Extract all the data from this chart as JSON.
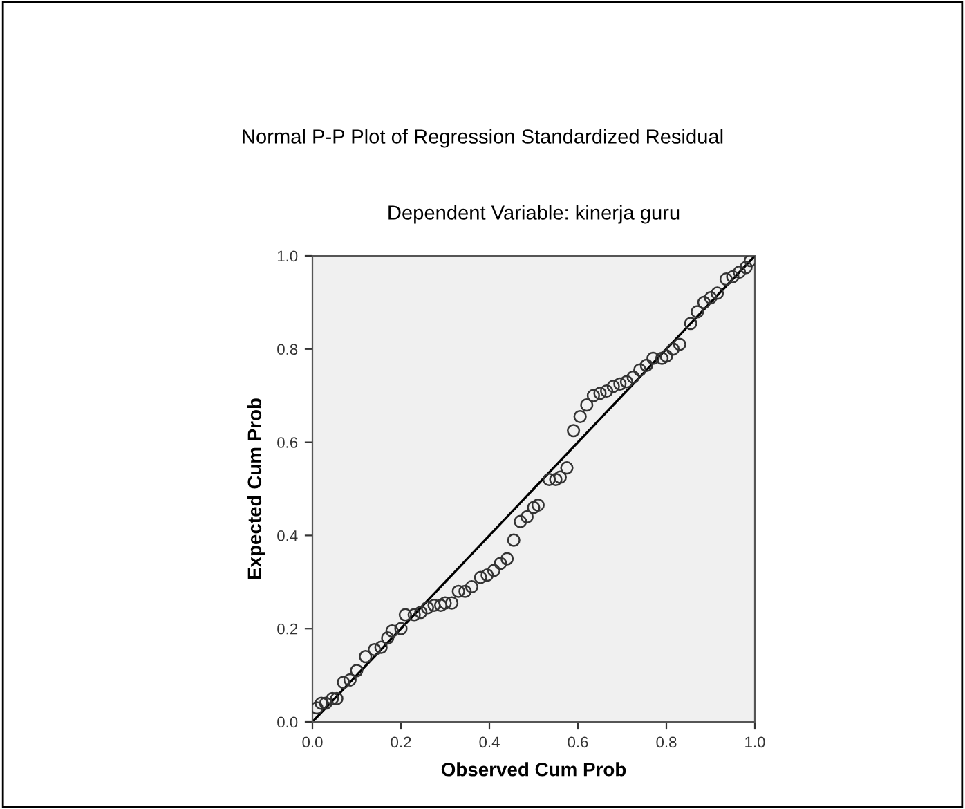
{
  "chart_data": {
    "type": "scatter",
    "title": "Normal P-P Plot of Regression Standardized Residual",
    "subtitle": "Dependent Variable: kinerja guru",
    "xlabel": "Observed Cum Prob",
    "ylabel": "Expected Cum Prob",
    "xlim": [
      0,
      1
    ],
    "ylim": [
      0,
      1
    ],
    "xticks": [
      {
        "value": 0,
        "label": "0.0"
      },
      {
        "value": 0.2,
        "label": "0.2"
      },
      {
        "value": 0.4,
        "label": "0.4"
      },
      {
        "value": 0.6,
        "label": "0.6"
      },
      {
        "value": 0.8,
        "label": "0.8"
      },
      {
        "value": 1,
        "label": "1.0"
      }
    ],
    "yticks": [
      {
        "value": 0,
        "label": "0.0"
      },
      {
        "value": 0.2,
        "label": "0.2"
      },
      {
        "value": 0.4,
        "label": "0.4"
      },
      {
        "value": 0.6,
        "label": "0.6"
      },
      {
        "value": 0.8,
        "label": "0.8"
      },
      {
        "value": 1,
        "label": "1.0"
      }
    ],
    "grid": false,
    "legend": false,
    "marker": "circle",
    "series": [
      {
        "color": "#333333",
        "x": [
          0.01,
          0.02,
          0.03,
          0.045,
          0.055,
          0.07,
          0.085,
          0.1,
          0.12,
          0.14,
          0.155,
          0.17,
          0.18,
          0.2,
          0.21,
          0.23,
          0.245,
          0.26,
          0.275,
          0.29,
          0.3,
          0.315,
          0.33,
          0.345,
          0.36,
          0.38,
          0.395,
          0.41,
          0.425,
          0.44,
          0.455,
          0.47,
          0.485,
          0.5,
          0.51,
          0.535,
          0.55,
          0.56,
          0.575,
          0.59,
          0.605,
          0.62,
          0.635,
          0.65,
          0.665,
          0.68,
          0.695,
          0.71,
          0.725,
          0.74,
          0.755,
          0.77,
          0.79,
          0.8,
          0.815,
          0.83,
          0.855,
          0.87,
          0.885,
          0.9,
          0.915,
          0.935,
          0.95,
          0.965,
          0.98,
          0.99
        ],
        "values": [
          0.03,
          0.04,
          0.04,
          0.05,
          0.05,
          0.085,
          0.09,
          0.11,
          0.14,
          0.155,
          0.16,
          0.18,
          0.195,
          0.2,
          0.23,
          0.23,
          0.235,
          0.245,
          0.25,
          0.25,
          0.255,
          0.255,
          0.28,
          0.28,
          0.29,
          0.31,
          0.315,
          0.325,
          0.34,
          0.35,
          0.39,
          0.43,
          0.44,
          0.46,
          0.465,
          0.52,
          0.52,
          0.525,
          0.545,
          0.625,
          0.655,
          0.68,
          0.7,
          0.705,
          0.71,
          0.72,
          0.725,
          0.73,
          0.74,
          0.755,
          0.765,
          0.78,
          0.78,
          0.785,
          0.8,
          0.81,
          0.855,
          0.88,
          0.9,
          0.91,
          0.92,
          0.95,
          0.955,
          0.965,
          0.975,
          0.99
        ]
      },
      {
        "type": "line",
        "marker": "none",
        "color": "#000000",
        "x": [
          0,
          1
        ],
        "values": [
          0,
          1
        ]
      }
    ]
  }
}
